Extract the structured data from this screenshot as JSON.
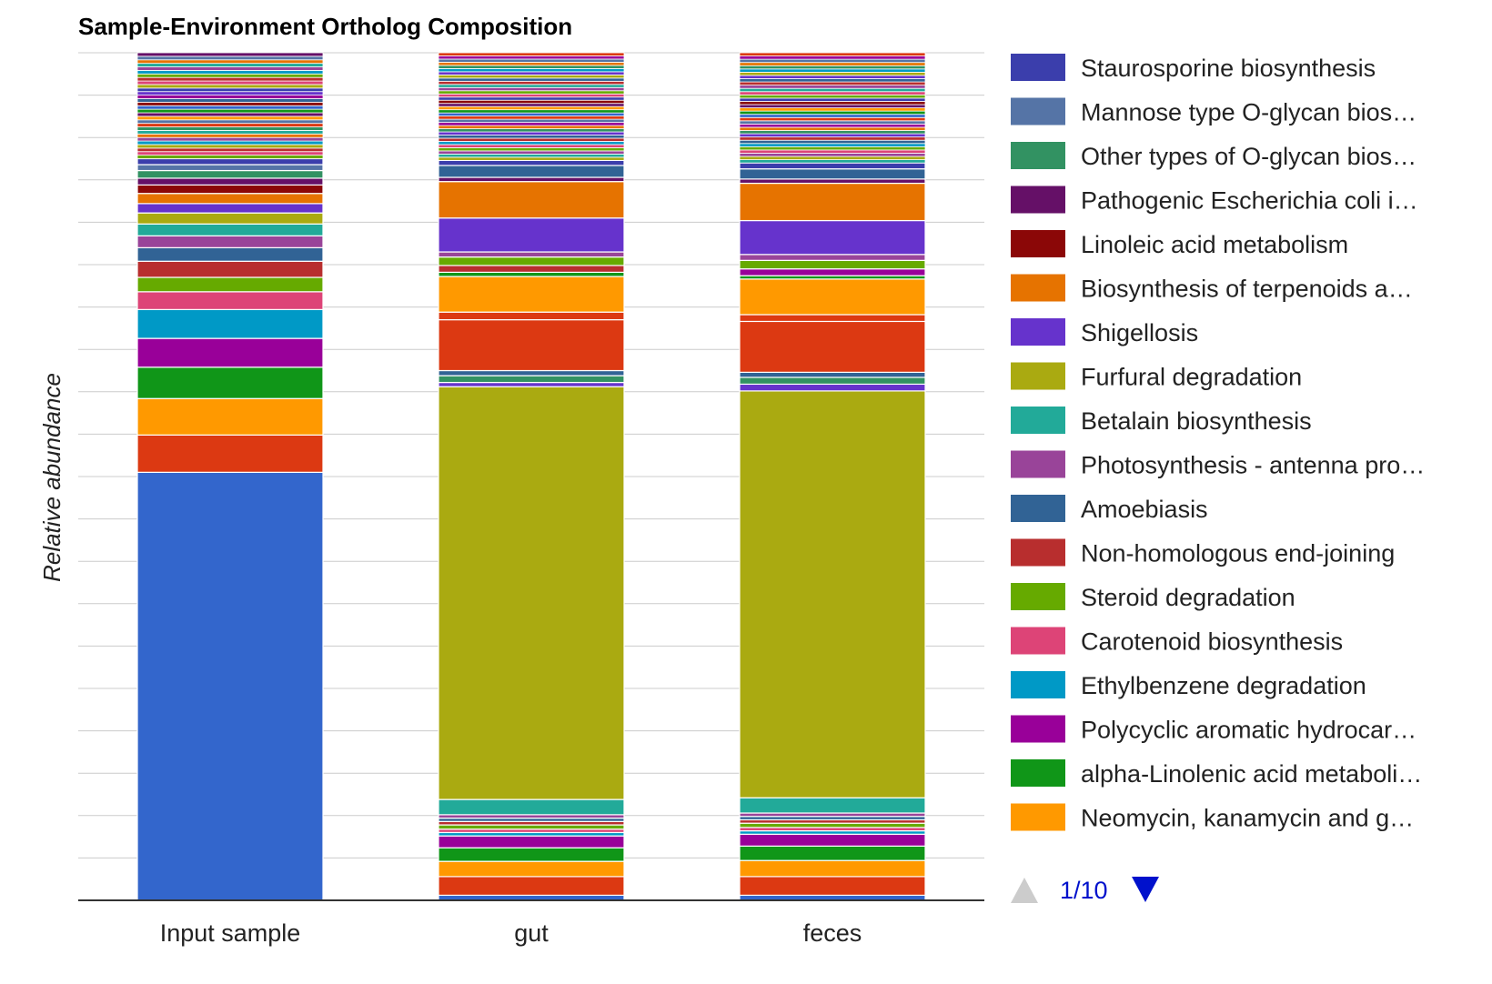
{
  "chart_data": {
    "type": "bar",
    "stacked": true,
    "title": "Sample-Environment Ortholog Composition",
    "xlabel": "",
    "ylabel": "Relative abundance",
    "ylim": [
      0,
      1
    ],
    "grid": true,
    "legend_position": "right",
    "categories": [
      "Input sample",
      "gut",
      "feces"
    ],
    "legend": {
      "page_label": "1/10",
      "entries": [
        {
          "label": "Staurosporine biosynthesis",
          "color": "#3B3EAC"
        },
        {
          "label": "Mannose type O-glycan bios…",
          "color": "#5574A6"
        },
        {
          "label": "Other types of O-glycan bios…",
          "color": "#329262"
        },
        {
          "label": "Pathogenic Escherichia coli i…",
          "color": "#651067"
        },
        {
          "label": "Linoleic acid metabolism",
          "color": "#8B0707"
        },
        {
          "label": "Biosynthesis of terpenoids a…",
          "color": "#E67300"
        },
        {
          "label": "Shigellosis",
          "color": "#6633CC"
        },
        {
          "label": "Furfural degradation",
          "color": "#AAAA11"
        },
        {
          "label": "Betalain biosynthesis",
          "color": "#22AA99"
        },
        {
          "label": "Photosynthesis - antenna pro…",
          "color": "#994499"
        },
        {
          "label": "Amoebiasis",
          "color": "#316395"
        },
        {
          "label": "Non-homologous end-joining",
          "color": "#B82E2E"
        },
        {
          "label": "Steroid degradation",
          "color": "#66AA00"
        },
        {
          "label": "Carotenoid biosynthesis",
          "color": "#DD4477"
        },
        {
          "label": "Ethylbenzene degradation",
          "color": "#0099C6"
        },
        {
          "label": "Polycyclic aromatic hydrocar…",
          "color": "#990099"
        },
        {
          "label": "alpha-Linolenic acid metaboli…",
          "color": "#109618"
        },
        {
          "label": "Neomycin, kanamycin and g…",
          "color": "#FF9900"
        }
      ]
    },
    "stacks": [
      {
        "category": "Input sample",
        "segments": [
          {
            "color": "#3366CC",
            "value": 0.505
          },
          {
            "color": "#DC3912",
            "value": 0.044
          },
          {
            "color": "#FF9900",
            "value": 0.043
          },
          {
            "color": "#109618",
            "value": 0.037
          },
          {
            "color": "#990099",
            "value": 0.034
          },
          {
            "color": "#0099C6",
            "value": 0.034
          },
          {
            "color": "#DD4477",
            "value": 0.021
          },
          {
            "color": "#66AA00",
            "value": 0.017
          },
          {
            "color": "#B82E2E",
            "value": 0.019
          },
          {
            "color": "#316395",
            "value": 0.016
          },
          {
            "color": "#994499",
            "value": 0.014
          },
          {
            "color": "#22AA99",
            "value": 0.014
          },
          {
            "color": "#AAAA11",
            "value": 0.013
          },
          {
            "color": "#6633CC",
            "value": 0.011
          },
          {
            "color": "#E67300",
            "value": 0.012
          },
          {
            "color": "#8B0707",
            "value": 0.01
          },
          {
            "color": "#651067",
            "value": 0.008
          },
          {
            "color": "#329262",
            "value": 0.009
          },
          {
            "color": "#5574A6",
            "value": 0.007
          },
          {
            "color": "#3B3EAC",
            "value": 0.007
          }
        ],
        "tail_colors": [
          "#66AA00",
          "#DD4477",
          "#B82E2E",
          "#AAAA11",
          "#0099C6",
          "#994499",
          "#E67300",
          "#22AA99",
          "#329262",
          "#DC3912",
          "#5574A6",
          "#FF9900",
          "#651067",
          "#109618",
          "#3366CC",
          "#8B0707",
          "#316395",
          "#990099",
          "#6633CC",
          "#3B3EAC",
          "#AAAA11",
          "#DD4477",
          "#B82E2E",
          "#66AA00",
          "#0099C6",
          "#994499",
          "#22AA99",
          "#E67300",
          "#5574A6",
          "#651067"
        ]
      },
      {
        "category": "gut",
        "segments": [
          {
            "color": "#3366CC",
            "value": 0.006
          },
          {
            "color": "#DC3912",
            "value": 0.022
          },
          {
            "color": "#FF9900",
            "value": 0.018
          },
          {
            "color": "#109618",
            "value": 0.016
          },
          {
            "color": "#990099",
            "value": 0.014
          },
          {
            "color": "#0099C6",
            "value": 0.004
          },
          {
            "color": "#DD4477",
            "value": 0.004
          },
          {
            "color": "#66AA00",
            "value": 0.005
          },
          {
            "color": "#B82E2E",
            "value": 0.004
          },
          {
            "color": "#316395",
            "value": 0.004
          },
          {
            "color": "#994499",
            "value": 0.004
          },
          {
            "color": "#22AA99",
            "value": 0.018
          },
          {
            "color": "#AAAA11",
            "value": 0.487
          },
          {
            "color": "#6633CC",
            "value": 0.005
          },
          {
            "color": "#329262",
            "value": 0.008
          },
          {
            "color": "#316395",
            "value": 0.006
          },
          {
            "color": "#DC3912",
            "value": 0.06
          },
          {
            "color": "#DC3912",
            "value": 0.009
          },
          {
            "color": "#FF9900",
            "value": 0.042
          },
          {
            "color": "#109618",
            "value": 0.005
          },
          {
            "color": "#B82E2E",
            "value": 0.008
          },
          {
            "color": "#66AA00",
            "value": 0.01
          },
          {
            "color": "#994499",
            "value": 0.006
          },
          {
            "color": "#6633CC",
            "value": 0.04
          },
          {
            "color": "#E67300",
            "value": 0.043
          },
          {
            "color": "#651067",
            "value": 0.005
          },
          {
            "color": "#316395",
            "value": 0.014
          },
          {
            "color": "#3B3EAC",
            "value": 0.006
          }
        ],
        "tail_colors": [
          "#AAAA11",
          "#22AA99",
          "#994499",
          "#66AA00",
          "#DD4477",
          "#0099C6",
          "#B82E2E",
          "#316395",
          "#6633CC",
          "#329262",
          "#E67300",
          "#990099",
          "#5574A6",
          "#DC3912",
          "#3366CC",
          "#109618",
          "#FF9900",
          "#651067",
          "#8B0707",
          "#3B3EAC",
          "#DD4477",
          "#66AA00",
          "#994499",
          "#22AA99",
          "#B82E2E",
          "#316395",
          "#AAAA11",
          "#6633CC",
          "#0099C6",
          "#329262",
          "#E67300",
          "#5574A6",
          "#990099",
          "#DC3912"
        ]
      },
      {
        "category": "feces",
        "segments": [
          {
            "color": "#3366CC",
            "value": 0.006
          },
          {
            "color": "#DC3912",
            "value": 0.022
          },
          {
            "color": "#FF9900",
            "value": 0.019
          },
          {
            "color": "#109618",
            "value": 0.017
          },
          {
            "color": "#990099",
            "value": 0.014
          },
          {
            "color": "#0099C6",
            "value": 0.004
          },
          {
            "color": "#DD4477",
            "value": 0.004
          },
          {
            "color": "#66AA00",
            "value": 0.005
          },
          {
            "color": "#B82E2E",
            "value": 0.004
          },
          {
            "color": "#316395",
            "value": 0.004
          },
          {
            "color": "#994499",
            "value": 0.004
          },
          {
            "color": "#22AA99",
            "value": 0.018
          },
          {
            "color": "#AAAA11",
            "value": 0.48
          },
          {
            "color": "#6633CC",
            "value": 0.008
          },
          {
            "color": "#329262",
            "value": 0.008
          },
          {
            "color": "#316395",
            "value": 0.006
          },
          {
            "color": "#DC3912",
            "value": 0.06
          },
          {
            "color": "#DC3912",
            "value": 0.008
          },
          {
            "color": "#FF9900",
            "value": 0.042
          },
          {
            "color": "#109618",
            "value": 0.004
          },
          {
            "color": "#990099",
            "value": 0.008
          },
          {
            "color": "#66AA00",
            "value": 0.01
          },
          {
            "color": "#994499",
            "value": 0.007
          },
          {
            "color": "#6633CC",
            "value": 0.04
          },
          {
            "color": "#E67300",
            "value": 0.044
          },
          {
            "color": "#651067",
            "value": 0.005
          },
          {
            "color": "#316395",
            "value": 0.012
          },
          {
            "color": "#3B3EAC",
            "value": 0.007
          }
        ],
        "tail_colors": [
          "#22AA99",
          "#AAAA11",
          "#994499",
          "#DD4477",
          "#66AA00",
          "#0099C6",
          "#316395",
          "#B82E2E",
          "#6633CC",
          "#329262",
          "#E67300",
          "#990099",
          "#5574A6",
          "#DC3912",
          "#3366CC",
          "#109618",
          "#FF9900",
          "#651067",
          "#8B0707",
          "#3B3EAC",
          "#66AA00",
          "#DD4477",
          "#22AA99",
          "#994499",
          "#B82E2E",
          "#316395",
          "#6633CC",
          "#AAAA11",
          "#0099C6",
          "#329262",
          "#E67300",
          "#5574A6",
          "#990099",
          "#DC3912"
        ]
      }
    ]
  }
}
